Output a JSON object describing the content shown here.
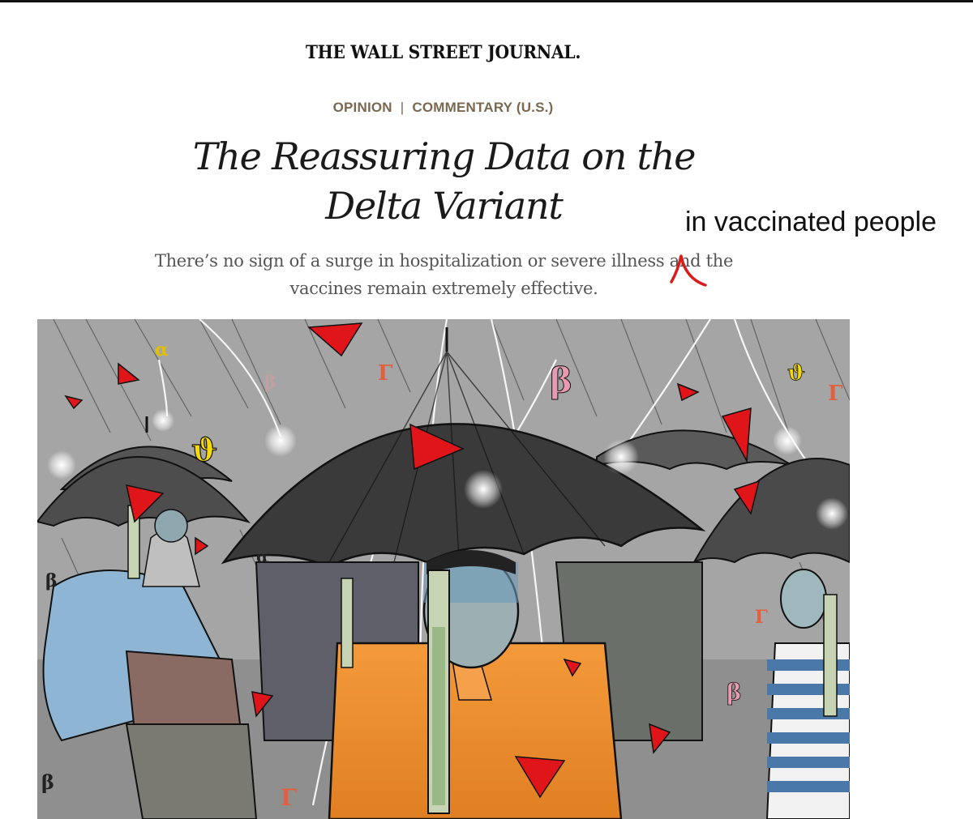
{
  "masthead": "THE WALL STREET JOURNAL.",
  "section": {
    "primary": "OPINION",
    "separator": "|",
    "secondary": "COMMENTARY (U.S.)"
  },
  "headline": "The Reassuring Data on the Delta Variant",
  "dek": "There’s no sign of a surge in hospitalization or severe illness and the vaccines remain extremely effective.",
  "annotation": {
    "text": "in vaccinated people",
    "caret_color": "#d91c1c"
  },
  "illustration": {
    "greek_letters": [
      "β",
      "β",
      "β",
      "β",
      "β",
      "α",
      "α",
      "Γ",
      "Γ",
      "Γ",
      "Γ"
    ]
  },
  "colors": {
    "section": "#7a6850",
    "accent_red": "#e0151a"
  }
}
